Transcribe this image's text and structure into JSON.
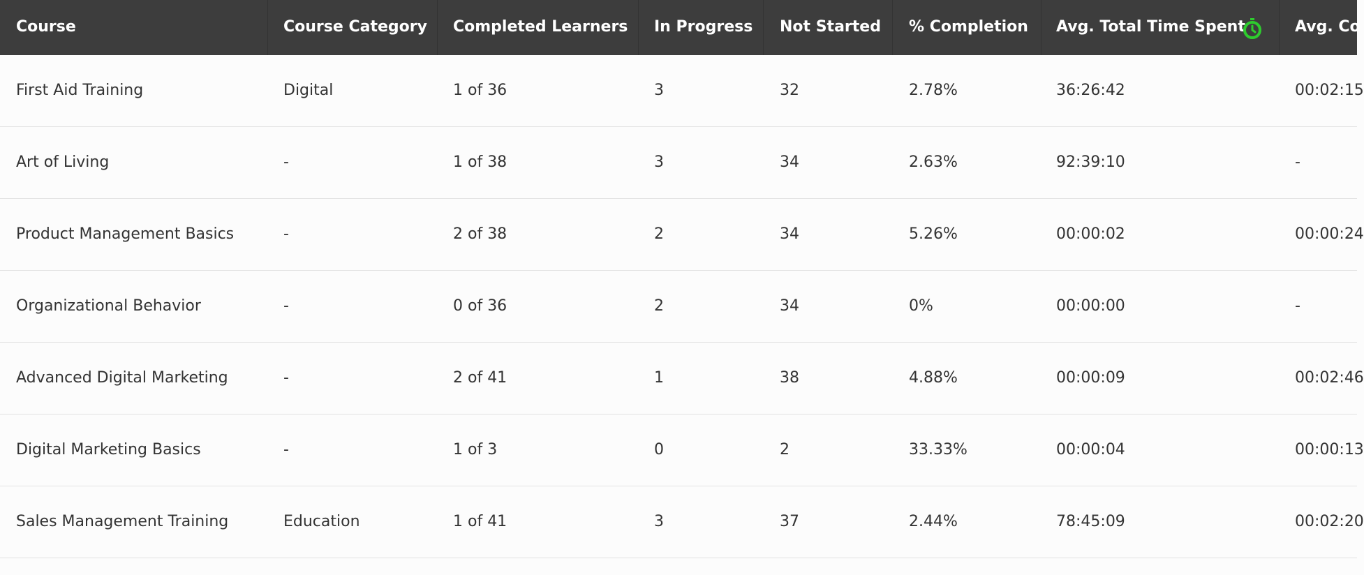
{
  "table": {
    "columns": [
      "Course",
      "Course Category",
      "Completed Learners",
      "In Progress",
      "Not Started",
      "% Completion",
      "Avg. Total Time Spent",
      "Avg. Co"
    ],
    "rows": [
      [
        "First Aid Training",
        "Digital",
        "1 of 36",
        "3",
        "32",
        "2.78%",
        "36:26:42",
        "00:02:15"
      ],
      [
        "Art of Living",
        "-",
        "1 of 38",
        "3",
        "34",
        "2.63%",
        "92:39:10",
        "-"
      ],
      [
        "Product Management Basics",
        "-",
        "2 of 38",
        "2",
        "34",
        "5.26%",
        "00:00:02",
        "00:00:24"
      ],
      [
        "Organizational Behavior",
        "-",
        "0 of 36",
        "2",
        "34",
        "0%",
        "00:00:00",
        "-"
      ],
      [
        "Advanced Digital Marketing",
        "-",
        "2 of 41",
        "1",
        "38",
        "4.88%",
        "00:00:09",
        "00:02:46"
      ],
      [
        "Digital Marketing Basics",
        "-",
        "1 of 3",
        "0",
        "2",
        "33.33%",
        "00:00:04",
        "00:00:13"
      ],
      [
        "Sales Management Training",
        "Education",
        "1 of 41",
        "3",
        "37",
        "2.44%",
        "78:45:09",
        "00:02:20"
      ]
    ]
  }
}
